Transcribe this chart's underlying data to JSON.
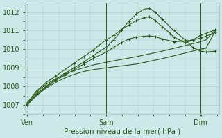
{
  "xlabel": "Pression niveau de la mer( hPa )",
  "ylim": [
    1006.5,
    1012.5
  ],
  "yticks": [
    1007,
    1008,
    1009,
    1010,
    1011,
    1012
  ],
  "background_color": "#cce8e8",
  "grid_color": "#b0cccc",
  "line_color": "#2d5a1b",
  "xtick_labels": [
    "Ven",
    "Sam",
    "Dim"
  ],
  "xtick_positions": [
    0.0,
    0.42,
    0.92
  ],
  "vline_positions": [
    0.42,
    0.92
  ],
  "xlim": [
    -0.01,
    1.02
  ],
  "series": [
    {
      "x": [
        0.0,
        0.05,
        0.1,
        0.15,
        0.2,
        0.25,
        0.3,
        0.35,
        0.42,
        0.5,
        0.58,
        0.65,
        0.72,
        0.78,
        0.84,
        0.88,
        0.92,
        0.95,
        1.0
      ],
      "y": [
        1007.0,
        1007.5,
        1007.9,
        1008.2,
        1008.45,
        1008.65,
        1008.8,
        1008.9,
        1009.0,
        1009.1,
        1009.2,
        1009.35,
        1009.5,
        1009.65,
        1009.8,
        1009.9,
        1010.0,
        1010.05,
        1011.0
      ],
      "marker": false
    },
    {
      "x": [
        0.0,
        0.05,
        0.1,
        0.15,
        0.2,
        0.25,
        0.3,
        0.35,
        0.42,
        0.5,
        0.58,
        0.65,
        0.72,
        0.78,
        0.84,
        0.88,
        0.92,
        0.95,
        1.0
      ],
      "y": [
        1007.1,
        1007.7,
        1008.1,
        1008.4,
        1008.65,
        1008.85,
        1009.0,
        1009.15,
        1009.3,
        1009.45,
        1009.6,
        1009.75,
        1009.9,
        1010.05,
        1010.2,
        1010.3,
        1010.4,
        1010.5,
        1011.05
      ],
      "marker": false
    },
    {
      "x": [
        0.0,
        0.05,
        0.1,
        0.15,
        0.2,
        0.25,
        0.3,
        0.35,
        0.38,
        0.42,
        0.46,
        0.5,
        0.54,
        0.58,
        0.62,
        0.65,
        0.68,
        0.72,
        0.78,
        0.84,
        0.88,
        0.92,
        0.95,
        1.0
      ],
      "y": [
        1007.05,
        1007.6,
        1008.0,
        1008.35,
        1008.7,
        1009.0,
        1009.3,
        1009.65,
        1009.85,
        1010.1,
        1010.5,
        1011.0,
        1011.5,
        1011.9,
        1012.15,
        1012.2,
        1012.0,
        1011.6,
        1011.0,
        1010.5,
        1010.1,
        1009.9,
        1009.85,
        1009.9
      ],
      "marker": true
    },
    {
      "x": [
        0.0,
        0.05,
        0.1,
        0.15,
        0.2,
        0.25,
        0.3,
        0.35,
        0.42,
        0.46,
        0.5,
        0.54,
        0.58,
        0.62,
        0.65,
        0.68,
        0.72,
        0.78,
        0.84,
        0.88,
        0.92,
        0.95,
        1.0
      ],
      "y": [
        1007.0,
        1007.55,
        1007.95,
        1008.3,
        1008.6,
        1008.9,
        1009.2,
        1009.5,
        1009.85,
        1010.1,
        1010.35,
        1010.55,
        1010.65,
        1010.7,
        1010.72,
        1010.68,
        1010.55,
        1010.4,
        1010.45,
        1010.5,
        1010.6,
        1010.7,
        1010.9
      ],
      "marker": true
    },
    {
      "x": [
        0.0,
        0.05,
        0.1,
        0.15,
        0.2,
        0.25,
        0.3,
        0.35,
        0.38,
        0.42,
        0.46,
        0.5,
        0.54,
        0.58,
        0.62,
        0.65,
        0.68,
        0.72,
        0.76,
        0.78,
        0.82,
        0.84,
        0.88,
        0.92,
        0.95,
        1.0
      ],
      "y": [
        1007.1,
        1007.75,
        1008.2,
        1008.55,
        1008.9,
        1009.25,
        1009.6,
        1009.95,
        1010.2,
        1010.5,
        1010.75,
        1011.05,
        1011.3,
        1011.55,
        1011.7,
        1011.75,
        1011.55,
        1011.2,
        1010.85,
        1010.65,
        1010.45,
        1010.35,
        1010.5,
        1010.75,
        1010.85,
        1011.05
      ],
      "marker": true
    }
  ]
}
